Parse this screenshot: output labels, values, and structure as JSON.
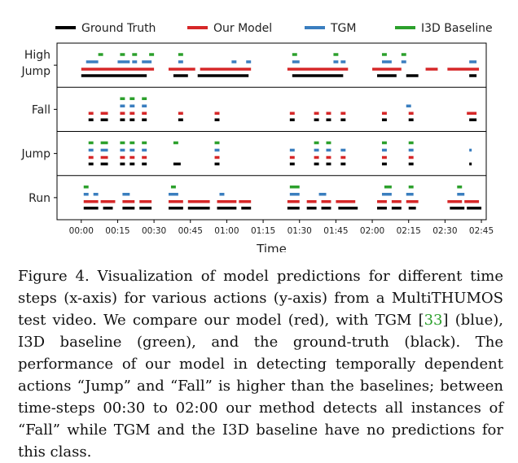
{
  "chart_data": {
    "type": "timeline",
    "xlabel": "Time",
    "x_ticks": [
      "00:00",
      "00:15",
      "00:30",
      "00:45",
      "01:00",
      "01:15",
      "01:30",
      "01:45",
      "02:00",
      "02:15",
      "02:30",
      "02:45"
    ],
    "x_unit": "seconds",
    "xlim": [
      -10,
      167
    ],
    "legend_placement": "top",
    "series": [
      {
        "key": "gt",
        "name": "Ground Truth",
        "color": "#000000"
      },
      {
        "key": "ours",
        "name": "Our Model",
        "color": "#d62728"
      },
      {
        "key": "tgm",
        "name": "TGM",
        "color": "#3a7ebf"
      },
      {
        "key": "i3d",
        "name": "I3D Baseline",
        "color": "#2ca02c"
      }
    ],
    "rows": [
      {
        "label": [
          "High",
          "Jump"
        ],
        "segments": {
          "gt": [
            [
              0,
              27
            ],
            [
              38,
              44
            ],
            [
              48,
              69
            ],
            [
              87,
              108
            ],
            [
              122,
              130
            ],
            [
              134,
              139
            ],
            [
              160,
              163
            ]
          ],
          "ours": [
            [
              0,
              30
            ],
            [
              36,
              47
            ],
            [
              49,
              70
            ],
            [
              85,
              110
            ],
            [
              120,
              132
            ],
            [
              142,
              147
            ],
            [
              151,
              164
            ]
          ],
          "tgm": [
            [
              2,
              7
            ],
            [
              15,
              20
            ],
            [
              21,
              23
            ],
            [
              25,
              29
            ],
            [
              40,
              42
            ],
            [
              62,
              64
            ],
            [
              68,
              70
            ],
            [
              87,
              90
            ],
            [
              104,
              106
            ],
            [
              107,
              109
            ],
            [
              124,
              128
            ],
            [
              132,
              134
            ],
            [
              160,
              163
            ]
          ],
          "i3d": [
            [
              7,
              9
            ],
            [
              16,
              18
            ],
            [
              21,
              23
            ],
            [
              28,
              30
            ],
            [
              40,
              42
            ],
            [
              87,
              89
            ],
            [
              104,
              106
            ],
            [
              124,
              126
            ],
            [
              132,
              134
            ]
          ]
        }
      },
      {
        "label": [
          "Fall"
        ],
        "segments": {
          "gt": [
            [
              3,
              5
            ],
            [
              8,
              11
            ],
            [
              16,
              18
            ],
            [
              20,
              22
            ],
            [
              25,
              27
            ],
            [
              40,
              42
            ],
            [
              55,
              57
            ],
            [
              86,
              88
            ],
            [
              96,
              98
            ],
            [
              101,
              103
            ],
            [
              107,
              109
            ],
            [
              124,
              126
            ],
            [
              135,
              137
            ],
            [
              160,
              163
            ]
          ],
          "ours": [
            [
              3,
              5
            ],
            [
              8,
              11
            ],
            [
              16,
              18
            ],
            [
              20,
              22
            ],
            [
              25,
              27
            ],
            [
              40,
              42
            ],
            [
              55,
              57
            ],
            [
              86,
              88
            ],
            [
              96,
              98
            ],
            [
              101,
              103
            ],
            [
              107,
              109
            ],
            [
              124,
              126
            ],
            [
              135,
              137
            ],
            [
              159,
              163
            ]
          ],
          "tgm": [
            [
              16,
              18
            ],
            [
              20,
              22
            ],
            [
              25,
              27
            ],
            [
              134,
              136
            ]
          ],
          "i3d": [
            [
              16,
              18
            ],
            [
              20,
              22
            ],
            [
              25,
              27
            ]
          ]
        }
      },
      {
        "label": [
          "Jump"
        ],
        "segments": {
          "gt": [
            [
              3,
              5
            ],
            [
              8,
              11
            ],
            [
              16,
              18
            ],
            [
              20,
              22
            ],
            [
              25,
              27
            ],
            [
              38,
              41
            ],
            [
              55,
              57
            ],
            [
              86,
              88
            ],
            [
              96,
              98
            ],
            [
              101,
              103
            ],
            [
              107,
              109
            ],
            [
              124,
              126
            ],
            [
              135,
              137
            ],
            [
              160,
              161
            ]
          ],
          "ours": [
            [
              3,
              5
            ],
            [
              8,
              11
            ],
            [
              16,
              18
            ],
            [
              20,
              22
            ],
            [
              25,
              27
            ],
            [
              55,
              57
            ],
            [
              86,
              88
            ],
            [
              96,
              98
            ],
            [
              101,
              103
            ],
            [
              107,
              109
            ],
            [
              124,
              126
            ],
            [
              135,
              137
            ]
          ],
          "tgm": [
            [
              3,
              5
            ],
            [
              8,
              11
            ],
            [
              16,
              18
            ],
            [
              20,
              22
            ],
            [
              25,
              27
            ],
            [
              55,
              57
            ],
            [
              86,
              88
            ],
            [
              96,
              98
            ],
            [
              101,
              103
            ],
            [
              107,
              109
            ],
            [
              124,
              126
            ],
            [
              135,
              137
            ],
            [
              160,
              161
            ]
          ],
          "i3d": [
            [
              3,
              5
            ],
            [
              8,
              11
            ],
            [
              16,
              18
            ],
            [
              20,
              22
            ],
            [
              25,
              27
            ],
            [
              38,
              40
            ],
            [
              55,
              57
            ],
            [
              96,
              98
            ],
            [
              101,
              103
            ],
            [
              124,
              126
            ],
            [
              135,
              137
            ]
          ]
        }
      },
      {
        "label": [
          "Run"
        ],
        "segments": {
          "gt": [
            [
              1,
              7
            ],
            [
              9,
              13
            ],
            [
              17,
              22
            ],
            [
              24,
              29
            ],
            [
              36,
              42
            ],
            [
              44,
              53
            ],
            [
              56,
              64
            ],
            [
              66,
              70
            ],
            [
              85,
              90
            ],
            [
              93,
              97
            ],
            [
              99,
              103
            ],
            [
              106,
              114
            ],
            [
              122,
              126
            ],
            [
              128,
              132
            ],
            [
              135,
              138
            ],
            [
              152,
              158
            ],
            [
              159,
              165
            ]
          ],
          "ours": [
            [
              1,
              7
            ],
            [
              8,
              14
            ],
            [
              17,
              22
            ],
            [
              24,
              29
            ],
            [
              36,
              42
            ],
            [
              44,
              53
            ],
            [
              56,
              64
            ],
            [
              65,
              70
            ],
            [
              85,
              90
            ],
            [
              93,
              97
            ],
            [
              99,
              103
            ],
            [
              105,
              113
            ],
            [
              122,
              126
            ],
            [
              128,
              132
            ],
            [
              134,
              139
            ],
            [
              151,
              157
            ],
            [
              158,
              164
            ]
          ],
          "tgm": [
            [
              1,
              3
            ],
            [
              5,
              7
            ],
            [
              17,
              20
            ],
            [
              36,
              40
            ],
            [
              57,
              59
            ],
            [
              86,
              90
            ],
            [
              98,
              101
            ],
            [
              124,
              128
            ],
            [
              134,
              137
            ],
            [
              155,
              158
            ]
          ],
          "i3d": [
            [
              1,
              3
            ],
            [
              37,
              39
            ],
            [
              86,
              90
            ],
            [
              125,
              128
            ],
            [
              135,
              137
            ],
            [
              155,
              157
            ]
          ]
        }
      }
    ]
  },
  "caption": {
    "figure_label": "Figure 4.",
    "part1": " Visualization of model predictions for different time steps (x-axis) for various actions (y-axis) from a MultiTHUMOS test video. We compare our model (red), with TGM [",
    "cite": "33",
    "part2": "] (blue), I3D baseline (green), and the ground-truth (black). The performance of our model in detecting temporally dependent actions “Jump” and “Fall” is higher than the baselines; between time-steps 00:30 to 02:00 our method detects all instances of “Fall” while TGM and the I3D baseline have no predictions for this class."
  }
}
